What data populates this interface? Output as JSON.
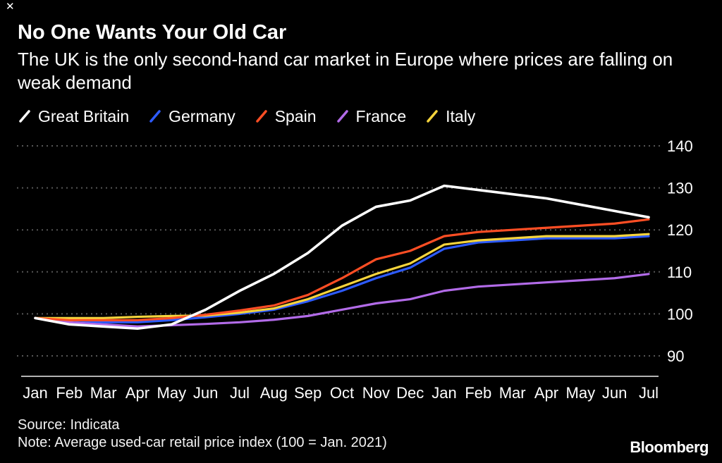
{
  "corner_mark": "✕",
  "chart_data": {
    "type": "line",
    "title": "No One Wants Your Old Car",
    "subtitle": "The UK is the only second-hand car market in Europe where prices are falling on weak demand",
    "x": [
      "Jan",
      "Feb",
      "Mar",
      "Apr",
      "May",
      "Jun",
      "Jul",
      "Aug",
      "Sep",
      "Oct",
      "Nov",
      "Dec",
      "Jan",
      "Feb",
      "Mar",
      "Apr",
      "May",
      "Jun",
      "Jul"
    ],
    "series": [
      {
        "name": "Great Britain",
        "color": "#ffffff",
        "values": [
          99,
          97.5,
          97,
          96.5,
          97.5,
          101,
          105.5,
          109.5,
          114.5,
          121,
          125.5,
          127,
          130.5,
          129.5,
          128.5,
          127.5,
          126,
          124.5,
          123
        ]
      },
      {
        "name": "Germany",
        "color": "#2d5bff",
        "values": [
          99,
          98.5,
          98,
          98,
          98.5,
          99.2,
          100,
          101,
          103,
          105.5,
          108.5,
          111,
          115.5,
          117,
          117.5,
          118,
          118,
          118,
          118.5
        ]
      },
      {
        "name": "Spain",
        "color": "#ff4e24",
        "values": [
          99,
          98.5,
          98.5,
          98.5,
          99,
          99.8,
          100.8,
          102,
          104.5,
          108.5,
          113,
          115,
          118.5,
          119.5,
          120,
          120.5,
          121,
          121.5,
          122.5
        ]
      },
      {
        "name": "France",
        "color": "#b26be8",
        "values": [
          99,
          98,
          97.5,
          97,
          97.3,
          97.6,
          98,
          98.6,
          99.5,
          101,
          102.5,
          103.5,
          105.5,
          106.5,
          107,
          107.5,
          108,
          108.5,
          109.5
        ]
      },
      {
        "name": "Italy",
        "color": "#f5d43c",
        "values": [
          99,
          99,
          99,
          99.3,
          99.5,
          99.6,
          100.3,
          101.3,
          103.5,
          106.5,
          109.5,
          112,
          116.5,
          117.5,
          118,
          118.5,
          118.5,
          118.5,
          119
        ]
      }
    ],
    "yticks": [
      90,
      100,
      110,
      120,
      130,
      140
    ],
    "ylim": [
      85.5,
      143
    ],
    "xlabel": "",
    "ylabel": "",
    "grid": "dotted-horizontal",
    "legend_position": "top"
  },
  "colors": {
    "background": "#000000",
    "text": "#ffffff",
    "grid": "#565656",
    "axis": "#b3b3b3"
  },
  "footer": {
    "source": "Source: Indicata",
    "note": "Note: Average used-car retail price index (100 = Jan. 2021)",
    "brand": "Bloomberg"
  }
}
